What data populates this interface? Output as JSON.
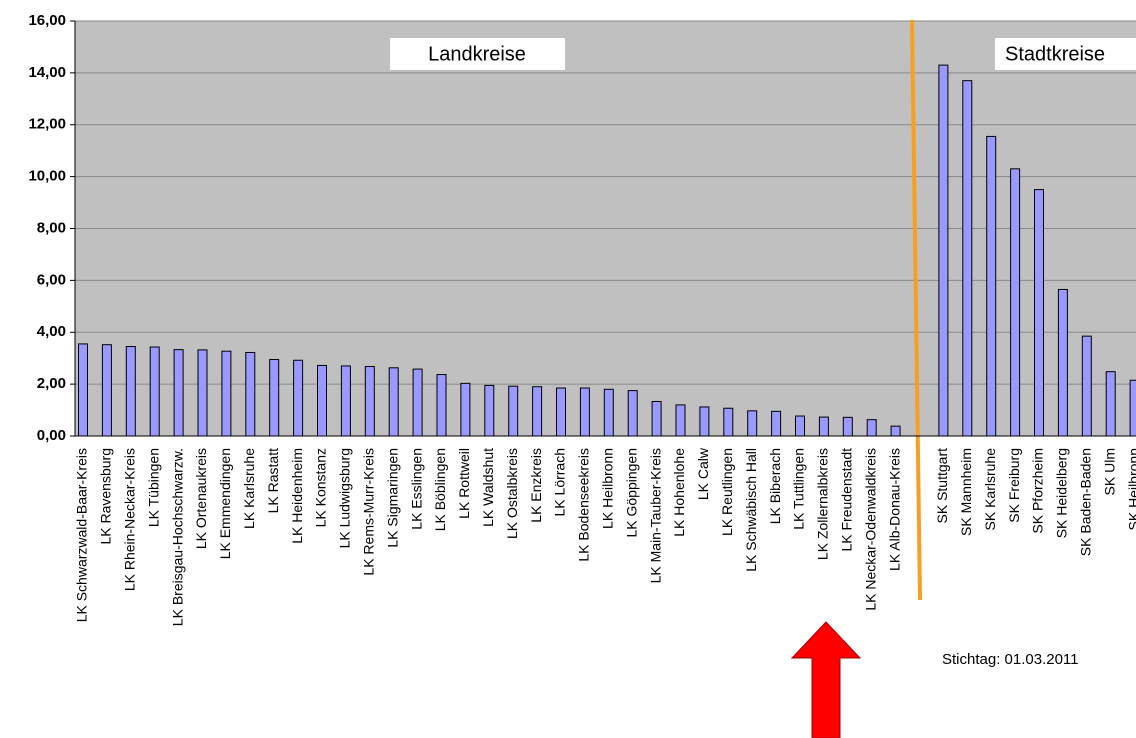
{
  "chart_data": {
    "type": "bar",
    "categories": [
      "LK Schwarzwald-Baar-Kreis",
      "LK Ravensburg",
      "LK Rhein-Neckar-Kreis",
      "LK Tübingen",
      "LK Breisgau-Hochschwarzw.",
      "LK Ortenaukreis",
      "LK Emmendingen",
      "LK Karlsruhe",
      "LK Rastatt",
      "LK Heidenheim",
      "LK Konstanz",
      "LK Ludwigsburg",
      "LK Rems-Murr-Kreis",
      "LK Sigmaringen",
      "LK Esslingen",
      "LK Böblingen",
      "LK Rottweil",
      "LK Waldshut",
      "LK Ostalbkreis",
      "LK Enzkreis",
      "LK Lörrach",
      "LK Bodenseekreis",
      "LK Heilbronn",
      "LK Göppingen",
      "LK Main-Tauber-Kreis",
      "LK Hohenlohe",
      "LK Calw",
      "LK Reutlingen",
      "LK Schwäbisch Hall",
      "LK Biberach",
      "LK Tuttlingen",
      "LK Zollernalbkreis",
      "LK Freudenstadt",
      "LK Neckar-Odenwaldkreis",
      "LK Alb-Donau-Kreis",
      null,
      "SK Stuttgart",
      "SK Mannheim",
      "SK Karlsruhe",
      "SK Freiburg",
      "SK Pforzheim",
      "SK Heidelberg",
      "SK Baden-Baden",
      "SK Ulm",
      "SK Heilbronn"
    ],
    "values": [
      3.55,
      3.52,
      3.45,
      3.43,
      3.33,
      3.32,
      3.27,
      3.22,
      2.95,
      2.92,
      2.72,
      2.7,
      2.68,
      2.63,
      2.58,
      2.37,
      2.03,
      1.95,
      1.92,
      1.9,
      1.85,
      1.85,
      1.8,
      1.75,
      1.33,
      1.2,
      1.12,
      1.07,
      0.97,
      0.95,
      0.77,
      0.73,
      0.72,
      0.63,
      0.38,
      null,
      14.3,
      13.7,
      11.55,
      10.3,
      9.5,
      5.65,
      3.85,
      2.48,
      2.15
    ],
    "color": "#9999ff",
    "ylim": [
      0,
      16
    ],
    "yticks": [
      {
        "value": 0,
        "label": "0,00"
      },
      {
        "value": 2,
        "label": "2,00"
      },
      {
        "value": 4,
        "label": "4,00"
      },
      {
        "value": 6,
        "label": "6,00"
      },
      {
        "value": 8,
        "label": "8,00"
      },
      {
        "value": 10,
        "label": "10,00"
      },
      {
        "value": 12,
        "label": "12,00"
      },
      {
        "value": 14,
        "label": "14,00"
      },
      {
        "value": 16,
        "label": "16,00"
      }
    ],
    "grid": true,
    "annotations": [
      "Landkreise",
      "Stadtkreise",
      "Stichtag: 01.03.2011"
    ]
  }
}
